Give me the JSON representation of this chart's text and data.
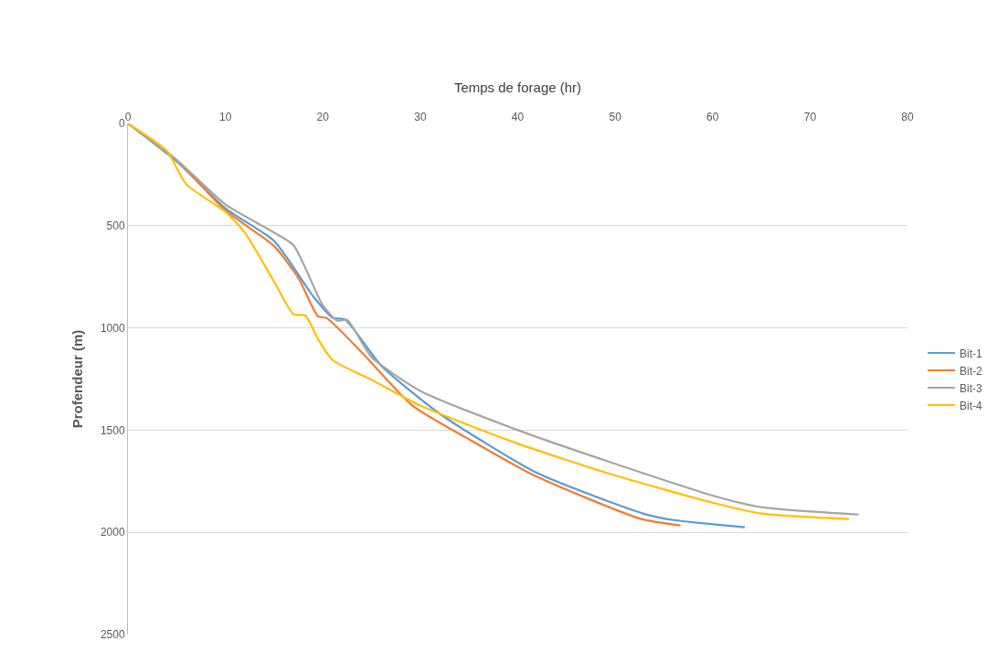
{
  "chart_data": {
    "type": "line",
    "xlabel": "Temps de forage (hr)",
    "ylabel": "Profendeur (m)",
    "xlim": [
      0,
      80
    ],
    "xticks": [
      0,
      10,
      20,
      30,
      40,
      50,
      60,
      70,
      80
    ],
    "ylim": [
      2500,
      0
    ],
    "yticks": [
      0,
      500,
      1000,
      1500,
      2000,
      2500
    ],
    "grid": "y",
    "legend": "right",
    "line_style": "solid",
    "marker": "none",
    "series": [
      {
        "name": "Bit-1",
        "color": "#5b9bd5",
        "x": [
          0,
          5,
          10,
          15,
          19,
          21,
          22.3,
          26,
          32,
          42,
          53,
          56,
          63.3
        ],
        "values": [
          0,
          185,
          415,
          575,
          845,
          950,
          960,
          1185,
          1420,
          1710,
          1910,
          1940,
          1975
        ]
      },
      {
        "name": "Bit-2",
        "color": "#ed7d31",
        "x": [
          0,
          5,
          10,
          15,
          17.5,
          19.5,
          20.4,
          24,
          29.2,
          35,
          41.7,
          52.7,
          56.7
        ],
        "values": [
          0,
          180,
          425,
          600,
          756,
          943,
          952,
          1120,
          1380,
          1545,
          1722,
          1935,
          1966
        ]
      },
      {
        "name": "Bit-3",
        "color": "#a5a5a5",
        "x": [
          0,
          5,
          10,
          15,
          17,
          20,
          21.5,
          22.5,
          25,
          30,
          40,
          50,
          60,
          65,
          75
        ],
        "values": [
          0,
          178,
          396,
          534,
          596,
          890,
          965,
          961,
          1143,
          1308,
          1500,
          1665,
          1820,
          1877,
          1913
        ]
      },
      {
        "name": "Bit-4",
        "color": "#ffc000",
        "x": [
          0,
          4,
          6,
          10,
          12,
          15,
          17,
          18.2,
          19.5,
          21,
          25,
          30,
          40,
          50,
          60,
          65,
          74
        ],
        "values": [
          0,
          135,
          298,
          432,
          534,
          774,
          934,
          939,
          1054,
          1157,
          1254,
          1380,
          1566,
          1722,
          1855,
          1908,
          1935
        ]
      }
    ]
  }
}
